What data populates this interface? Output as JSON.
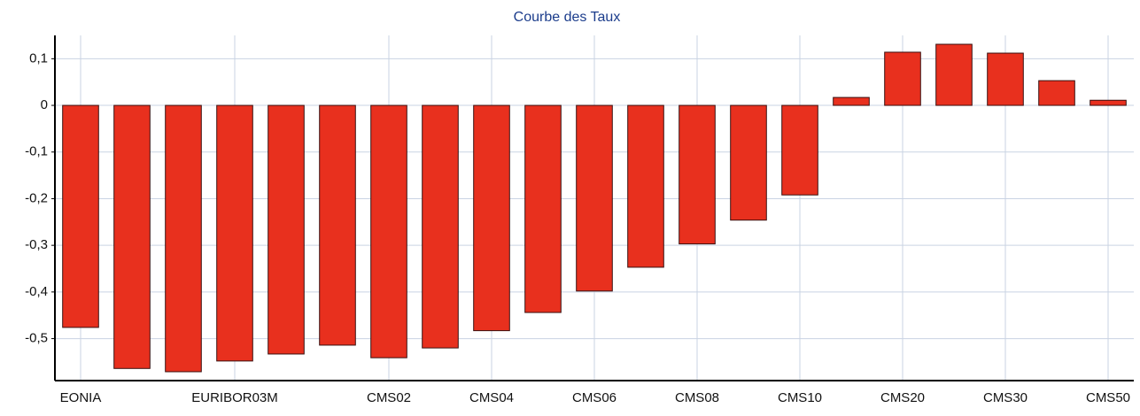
{
  "chart_data": {
    "type": "bar",
    "title": "Courbe des Taux",
    "categories": [
      "EONIA",
      null,
      null,
      "EURIBOR03M",
      null,
      null,
      "CMS02",
      null,
      "CMS04",
      null,
      "CMS06",
      null,
      "CMS08",
      null,
      "CMS10",
      null,
      "CMS20",
      null,
      "CMS30",
      null,
      "CMS50"
    ],
    "values": [
      -0.476,
      -0.564,
      -0.571,
      -0.548,
      -0.533,
      -0.514,
      -0.541,
      -0.52,
      -0.483,
      -0.444,
      -0.398,
      -0.347,
      -0.297,
      -0.246,
      -0.192,
      0.017,
      0.114,
      0.131,
      0.112,
      0.053,
      0.011
    ],
    "color": "#e8301e",
    "ylim": [
      -0.59,
      0.15
    ],
    "yticks": [
      {
        "value": -0.5,
        "label": "-0,5"
      },
      {
        "value": -0.4,
        "label": "-0,4"
      },
      {
        "value": -0.3,
        "label": "-0,3"
      },
      {
        "value": -0.2,
        "label": "-0,2"
      },
      {
        "value": -0.1,
        "label": "-0,1"
      },
      0,
      {
        "value": 0.1,
        "label": "0,1"
      }
    ],
    "grid": true
  }
}
